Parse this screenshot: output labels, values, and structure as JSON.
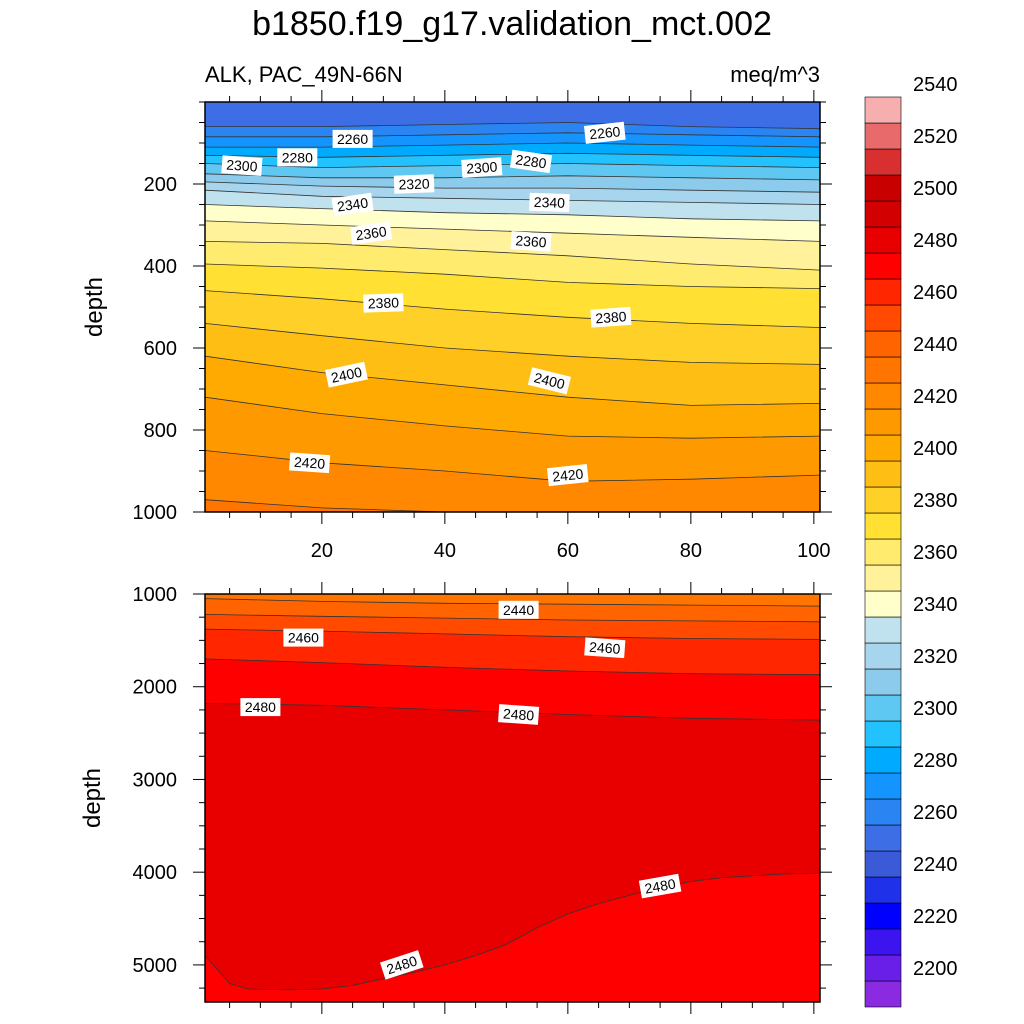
{
  "title": "b1850.f19_g17.validation_mct.002",
  "chart_data": [
    {
      "type": "heatmap",
      "panel": "upper",
      "left_label": "ALK, PAC_49N-66N",
      "right_label": "meq/m^3",
      "ylabel": "depth",
      "xlabel": "",
      "xlim": [
        1,
        101
      ],
      "ylim": [
        0,
        1000
      ],
      "y_inverted": true,
      "x_ticks": [
        20,
        40,
        60,
        80,
        100
      ],
      "y_ticks": [
        200,
        400,
        600,
        800,
        1000
      ],
      "contour_levels": [
        2200,
        2210,
        2220,
        2230,
        2240,
        2250,
        2260,
        2270,
        2280,
        2290,
        2300,
        2310,
        2320,
        2330,
        2340,
        2350,
        2360,
        2370,
        2380,
        2390,
        2400,
        2410,
        2420,
        2430,
        2440
      ],
      "contour_depth_profile": {
        "x": [
          1,
          20,
          40,
          60,
          80,
          101
        ],
        "lines": [
          {
            "level": 2260,
            "depth": [
              60,
              60,
              55,
              50,
              60,
              65
            ]
          },
          {
            "level": 2270,
            "depth": [
              85,
              85,
              80,
              75,
              80,
              85
            ]
          },
          {
            "level": 2280,
            "depth": [
              110,
              110,
              105,
              100,
              105,
              110
            ]
          },
          {
            "level": 2290,
            "depth": [
              130,
              135,
              130,
              125,
              130,
              135
            ]
          },
          {
            "level": 2300,
            "depth": [
              150,
              160,
              155,
              150,
              155,
              160
            ]
          },
          {
            "level": 2310,
            "depth": [
              175,
              185,
              185,
              180,
              185,
              190
            ]
          },
          {
            "level": 2320,
            "depth": [
              195,
              205,
              210,
              210,
              215,
              220
            ]
          },
          {
            "level": 2330,
            "depth": [
              215,
              230,
              235,
              240,
              245,
              250
            ]
          },
          {
            "level": 2340,
            "depth": [
              250,
              260,
              270,
              275,
              285,
              290
            ]
          },
          {
            "level": 2350,
            "depth": [
              290,
              300,
              310,
              320,
              330,
              340
            ]
          },
          {
            "level": 2360,
            "depth": [
              340,
              345,
              360,
              375,
              395,
              410
            ]
          },
          {
            "level": 2370,
            "depth": [
              395,
              405,
              420,
              440,
              450,
              455
            ]
          },
          {
            "level": 2380,
            "depth": [
              460,
              480,
              505,
              525,
              540,
              550
            ]
          },
          {
            "level": 2390,
            "depth": [
              540,
              570,
              600,
              620,
              635,
              640
            ]
          },
          {
            "level": 2400,
            "depth": [
              620,
              660,
              690,
              720,
              740,
              735
            ]
          },
          {
            "level": 2410,
            "depth": [
              720,
              760,
              790,
              815,
              820,
              815
            ]
          },
          {
            "level": 2420,
            "depth": [
              850,
              880,
              900,
              925,
              920,
              910
            ]
          },
          {
            "level": 2430,
            "depth": [
              970,
              990,
              1000,
              1000,
              1000,
              1000
            ]
          }
        ]
      },
      "contour_labels": [
        {
          "value": "2260",
          "x": 25,
          "depth": 90,
          "angle": 0
        },
        {
          "value": "2260",
          "x": 66,
          "depth": 75,
          "angle": -6
        },
        {
          "value": "2280",
          "x": 16,
          "depth": 135,
          "angle": 0
        },
        {
          "value": "2280",
          "x": 54,
          "depth": 145,
          "angle": 8
        },
        {
          "value": "2300",
          "x": 7,
          "depth": 155,
          "angle": 4
        },
        {
          "value": "2300",
          "x": 46,
          "depth": 160,
          "angle": -4
        },
        {
          "value": "2320",
          "x": 35,
          "depth": 200,
          "angle": -2
        },
        {
          "value": "2340",
          "x": 25,
          "depth": 250,
          "angle": -8
        },
        {
          "value": "2340",
          "x": 57,
          "depth": 245,
          "angle": 2
        },
        {
          "value": "2360",
          "x": 28,
          "depth": 320,
          "angle": -8
        },
        {
          "value": "2360",
          "x": 54,
          "depth": 340,
          "angle": 4
        },
        {
          "value": "2380",
          "x": 30,
          "depth": 490,
          "angle": -2
        },
        {
          "value": "2380",
          "x": 67,
          "depth": 525,
          "angle": -4
        },
        {
          "value": "2400",
          "x": 24,
          "depth": 665,
          "angle": -12
        },
        {
          "value": "2400",
          "x": 57,
          "depth": 680,
          "angle": 14
        },
        {
          "value": "2420",
          "x": 18,
          "depth": 880,
          "angle": 4
        },
        {
          "value": "2420",
          "x": 60,
          "depth": 910,
          "angle": -6
        }
      ]
    },
    {
      "type": "heatmap",
      "panel": "lower",
      "ylabel": "depth",
      "xlabel": "",
      "xlim": [
        1,
        101
      ],
      "ylim": [
        1000,
        5400
      ],
      "y_inverted": true,
      "x_ticks": [
        20,
        40,
        60,
        80,
        100
      ],
      "y_ticks": [
        1000,
        2000,
        3000,
        4000,
        5000
      ],
      "contour_levels": [
        2430,
        2440,
        2450,
        2460,
        2470,
        2480,
        2490
      ],
      "contour_depth_profile": {
        "x": [
          1,
          20,
          40,
          60,
          80,
          101
        ],
        "lines": [
          {
            "level": 2440,
            "depth": [
              1050,
              1080,
              1100,
              1110,
              1120,
              1130
            ]
          },
          {
            "level": 2450,
            "depth": [
              1220,
              1240,
              1260,
              1280,
              1290,
              1300
            ]
          },
          {
            "level": 2460,
            "depth": [
              1380,
              1400,
              1430,
              1460,
              1480,
              1490
            ]
          },
          {
            "level": 2470,
            "depth": [
              1700,
              1740,
              1790,
              1830,
              1860,
              1870
            ]
          },
          {
            "level": 2480,
            "depth": [
              2180,
              2200,
              2250,
              2300,
              2340,
              2360
            ]
          }
        ]
      },
      "bottom_contour": {
        "level": 2480,
        "x": [
          1,
          3,
          5,
          8,
          15,
          20,
          25,
          30,
          35,
          40,
          45,
          50,
          55,
          60,
          65,
          70,
          75,
          80,
          85,
          90,
          95,
          101
        ],
        "depth": [
          4900,
          5050,
          5200,
          5260,
          5270,
          5260,
          5220,
          5150,
          5080,
          5000,
          4900,
          4780,
          4600,
          4450,
          4340,
          4250,
          4170,
          4100,
          4060,
          4040,
          4020,
          4010
        ]
      },
      "contour_labels": [
        {
          "value": "2440",
          "x": 52,
          "depth": 1170,
          "angle": 0
        },
        {
          "value": "2460",
          "x": 17,
          "depth": 1470,
          "angle": 0
        },
        {
          "value": "2460",
          "x": 66,
          "depth": 1580,
          "angle": 4
        },
        {
          "value": "2480",
          "x": 10,
          "depth": 2220,
          "angle": 0
        },
        {
          "value": "2480",
          "x": 52,
          "depth": 2300,
          "angle": 4
        },
        {
          "value": "2480",
          "x": 75,
          "depth": 4150,
          "angle": -10
        },
        {
          "value": "2480",
          "x": 33,
          "depth": 5000,
          "angle": -18
        }
      ]
    }
  ],
  "colorbar": {
    "colors": [
      "#8a2be2",
      "#6a1fe8",
      "#3c14f0",
      "#0000ff",
      "#1f32ea",
      "#3a5ad8",
      "#3d6ee6",
      "#2a85f2",
      "#1494ff",
      "#00aaff",
      "#22c2ff",
      "#5ec8f2",
      "#8ccbeb",
      "#a8d5ee",
      "#c0e2ee",
      "#ffffcc",
      "#fff29a",
      "#ffec6e",
      "#ffe033",
      "#ffd128",
      "#ffbe14",
      "#ffaa00",
      "#ff9900",
      "#ff8800",
      "#ff7500",
      "#ff6400",
      "#ff4a00",
      "#ff2600",
      "#ff0000",
      "#e80000",
      "#d20000",
      "#c80000",
      "#d83030",
      "#e86a6a",
      "#f7aeae"
    ],
    "labels": [
      "2200",
      "2220",
      "2240",
      "2260",
      "2280",
      "2300",
      "2320",
      "2340",
      "2360",
      "2380",
      "2400",
      "2420",
      "2440",
      "2460",
      "2480",
      "2500",
      "2520",
      "2540"
    ],
    "label_values": [
      2200,
      2220,
      2240,
      2260,
      2280,
      2300,
      2320,
      2340,
      2360,
      2380,
      2400,
      2420,
      2440,
      2460,
      2480,
      2500,
      2520,
      2540
    ]
  }
}
